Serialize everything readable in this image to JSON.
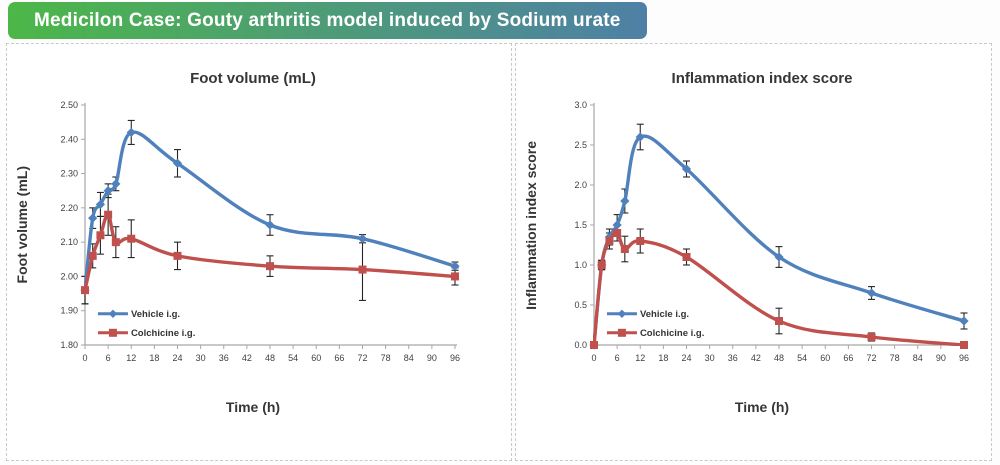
{
  "header": {
    "title": "Medicilon Case: Gouty arthritis model induced by Sodium urate",
    "gradient_from": "#4cb748",
    "gradient_to": "#4e80a6",
    "text_color": "#ffffff"
  },
  "colors": {
    "vehicle_blue": "#4f81bd",
    "colchicine_red": "#c0504d",
    "error_bar": "#262626",
    "axis": "#a6a6a6",
    "tick_text": "#3f3f3f",
    "panel_border": "#c9c9c9"
  },
  "chart_data": [
    {
      "type": "line",
      "title": "Foot volume (mL)",
      "ylabel": "Foot volume (mL)",
      "xlabel": "Time (h)",
      "grid": "off",
      "legend_location": "inside-bottom-left",
      "x": [
        0,
        2,
        4,
        6,
        8,
        12,
        24,
        48,
        72,
        96
      ],
      "xlim": [
        0,
        96
      ],
      "ylim": [
        1.8,
        2.5
      ],
      "xticks": [
        0,
        6,
        12,
        18,
        24,
        30,
        36,
        42,
        48,
        54,
        60,
        66,
        72,
        78,
        84,
        90,
        96
      ],
      "yticks": [
        {
          "v": 1.8,
          "label": "1.80"
        },
        {
          "v": 1.9,
          "label": "1.90"
        },
        {
          "v": 2.0,
          "label": "2.00"
        },
        {
          "v": 2.1,
          "label": "2.10"
        },
        {
          "v": 2.2,
          "label": "2.20"
        },
        {
          "v": 2.3,
          "label": "2.30"
        },
        {
          "v": 2.4,
          "label": "2.40"
        },
        {
          "v": 2.5,
          "label": "2.50"
        }
      ],
      "legend": {
        "fx": 0.035,
        "fy": 0.13
      },
      "series": [
        {
          "name": "Vehicle i.g.",
          "color": "#4f81bd",
          "marker": "diamond",
          "values": [
            1.96,
            2.17,
            2.21,
            2.25,
            2.27,
            2.42,
            2.33,
            2.15,
            2.11,
            2.03
          ],
          "errors": [
            0.04,
            0.03,
            0.035,
            0.02,
            0.02,
            0.035,
            0.04,
            0.03,
            0.012,
            0.012
          ]
        },
        {
          "name": "Colchicine i.g.",
          "color": "#c0504d",
          "marker": "square",
          "values": [
            1.96,
            2.06,
            2.12,
            2.18,
            2.1,
            2.11,
            2.06,
            2.03,
            2.02,
            2.0
          ],
          "errors": [
            0.04,
            0.035,
            0.055,
            0.06,
            0.045,
            0.055,
            0.04,
            0.03,
            0.09,
            0.025
          ]
        }
      ]
    },
    {
      "type": "line",
      "title": "Inflammation index score",
      "ylabel": "Inflammation index score",
      "xlabel": "Time (h)",
      "grid": "off",
      "legend_location": "inside-bottom-left",
      "x": [
        0,
        2,
        4,
        6,
        8,
        12,
        24,
        48,
        72,
        96
      ],
      "xlim": [
        0,
        96
      ],
      "ylim": [
        0.0,
        3.0
      ],
      "xticks": [
        0,
        6,
        12,
        18,
        24,
        30,
        36,
        42,
        48,
        54,
        60,
        66,
        72,
        78,
        84,
        90,
        96
      ],
      "yticks": [
        {
          "v": 0.0,
          "label": "0.0"
        },
        {
          "v": 0.5,
          "label": "0.5"
        },
        {
          "v": 1.0,
          "label": "1.0"
        },
        {
          "v": 1.5,
          "label": "1.5"
        },
        {
          "v": 2.0,
          "label": "2.0"
        },
        {
          "v": 2.5,
          "label": "2.5"
        },
        {
          "v": 3.0,
          "label": "3.0"
        }
      ],
      "legend": {
        "fx": 0.035,
        "fy": 0.13
      },
      "series": [
        {
          "name": "Vehicle i.g.",
          "color": "#4f81bd",
          "marker": "diamond",
          "values": [
            0.0,
            1.0,
            1.35,
            1.5,
            1.8,
            2.6,
            2.2,
            1.1,
            0.65,
            0.3
          ],
          "errors": [
            0.0,
            0.06,
            0.1,
            0.13,
            0.15,
            0.16,
            0.1,
            0.13,
            0.08,
            0.1
          ]
        },
        {
          "name": "Colchicine i.g.",
          "color": "#c0504d",
          "marker": "square",
          "values": [
            0.0,
            1.0,
            1.3,
            1.4,
            1.2,
            1.3,
            1.1,
            0.3,
            0.1,
            0.0
          ],
          "errors": [
            0.0,
            0.05,
            0.1,
            0.1,
            0.16,
            0.15,
            0.1,
            0.16,
            0.05,
            0.02
          ]
        }
      ]
    }
  ]
}
